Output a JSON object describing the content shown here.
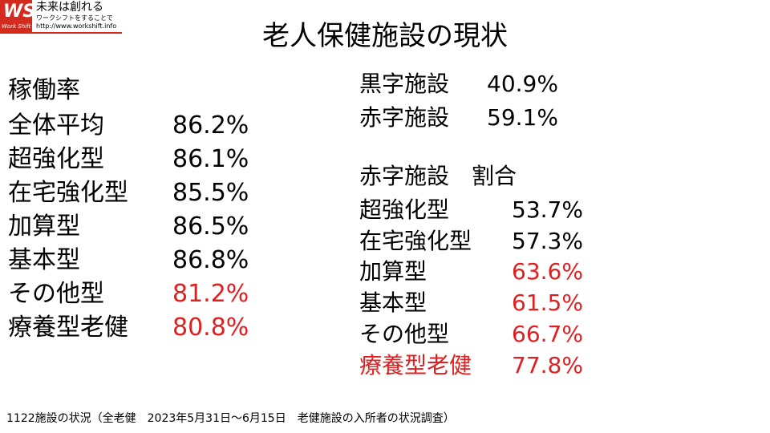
{
  "logo": {
    "mark": "WS",
    "tagline": "Work Shift",
    "slogan": "未来は創れる",
    "sub": "ワークシフトをすることで",
    "url": "http://www.workshift.info"
  },
  "title": "老人保健施設の現状",
  "occupancy": {
    "heading": "稼働率",
    "rows": [
      {
        "label": "全体平均",
        "value": "86.2%",
        "label_color": "#000000",
        "value_color": "#000000"
      },
      {
        "label": "超強化型",
        "value": "86.1%",
        "label_color": "#000000",
        "value_color": "#000000"
      },
      {
        "label": "在宅強化型",
        "value": "85.5%",
        "label_color": "#000000",
        "value_color": "#000000"
      },
      {
        "label": "加算型",
        "value": "86.5%",
        "label_color": "#000000",
        "value_color": "#000000"
      },
      {
        "label": "基本型",
        "value": "86.8%",
        "label_color": "#000000",
        "value_color": "#000000"
      },
      {
        "label": "その他型",
        "value": "81.2%",
        "label_color": "#000000",
        "value_color": "#e02020"
      },
      {
        "label": "療養型老健",
        "value": "80.8%",
        "label_color": "#000000",
        "value_color": "#e02020"
      }
    ]
  },
  "balance": {
    "rows": [
      {
        "label": "黒字施設",
        "value": "40.9%",
        "label_color": "#000000",
        "value_color": "#000000"
      },
      {
        "label": "赤字施設",
        "value": "59.1%",
        "label_color": "#000000",
        "value_color": "#000000"
      }
    ]
  },
  "deficit_ratio": {
    "heading": "赤字施設　割合",
    "rows": [
      {
        "label": "超強化型",
        "value": "53.7%",
        "label_color": "#000000",
        "value_color": "#000000"
      },
      {
        "label": "在宅強化型",
        "value": "57.3%",
        "label_color": "#000000",
        "value_color": "#000000"
      },
      {
        "label": "加算型",
        "value": "63.6%",
        "label_color": "#000000",
        "value_color": "#e02020"
      },
      {
        "label": "基本型",
        "value": "61.5%",
        "label_color": "#000000",
        "value_color": "#e02020"
      },
      {
        "label": "その他型",
        "value": "66.7%",
        "label_color": "#000000",
        "value_color": "#e02020"
      },
      {
        "label": "療養型老健",
        "value": "77.8%",
        "label_color": "#e02020",
        "value_color": "#e02020"
      }
    ]
  },
  "footer": "1122施設の状況（全老健　2023年5月31日～6月15日　老健施設の入所者の状況調査）"
}
